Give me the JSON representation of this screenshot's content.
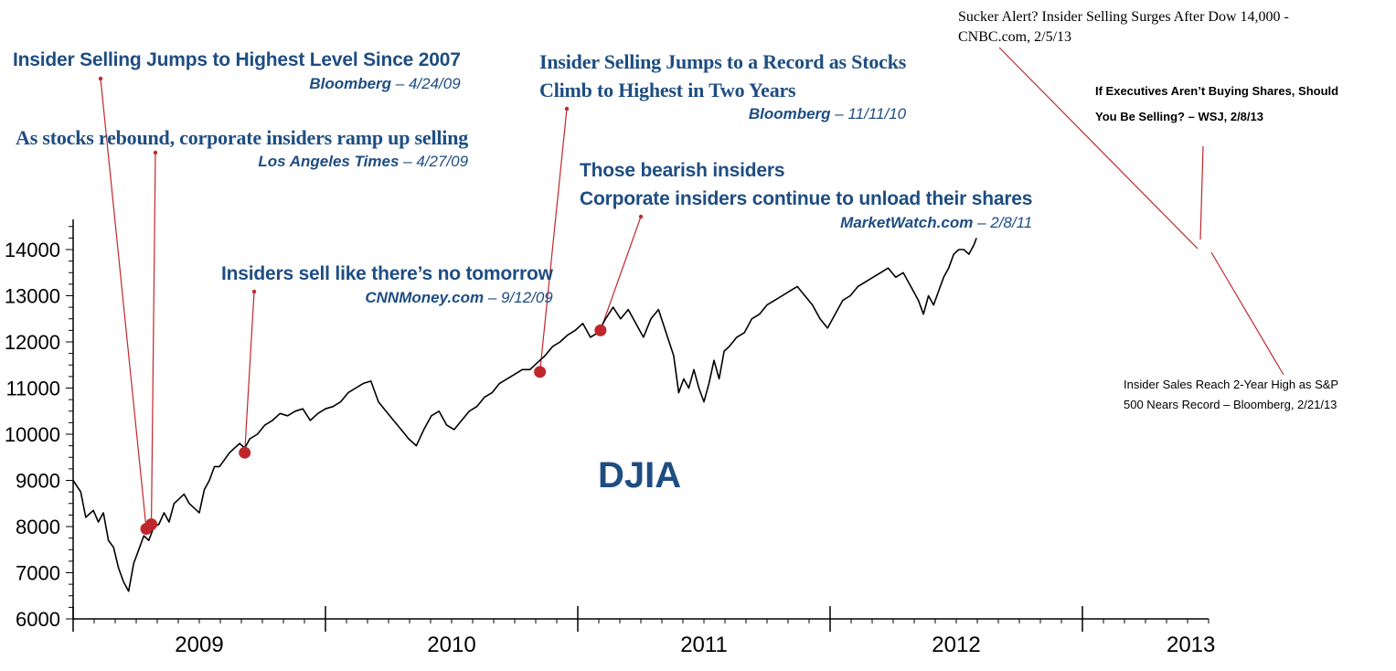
{
  "chart_data": {
    "type": "line",
    "title": "DJIA",
    "xlabel": "",
    "ylabel": "",
    "ylim": [
      6000,
      14500
    ],
    "y_ticks": [
      "6000",
      "7000",
      "8000",
      "9000",
      "10000",
      "11000",
      "12000",
      "13000",
      "14000"
    ],
    "x_year_labels": [
      "2009",
      "2010",
      "2011",
      "2012",
      "2013"
    ],
    "xlim": [
      2008.67,
      2013.17
    ],
    "series": [
      {
        "name": "DJIA",
        "color": "#000000",
        "points": [
          [
            2008.67,
            9000
          ],
          [
            2008.7,
            8750
          ],
          [
            2008.72,
            8200
          ],
          [
            2008.75,
            8350
          ],
          [
            2008.77,
            8100
          ],
          [
            2008.79,
            8300
          ],
          [
            2008.81,
            7700
          ],
          [
            2008.83,
            7550
          ],
          [
            2008.85,
            7100
          ],
          [
            2008.87,
            6800
          ],
          [
            2008.89,
            6600
          ],
          [
            2008.91,
            7200
          ],
          [
            2008.93,
            7500
          ],
          [
            2008.95,
            7800
          ],
          [
            2008.97,
            7700
          ],
          [
            2008.99,
            8000
          ],
          [
            2009.01,
            8050
          ],
          [
            2009.03,
            8300
          ],
          [
            2009.05,
            8100
          ],
          [
            2009.07,
            8500
          ],
          [
            2009.09,
            8600
          ],
          [
            2009.11,
            8700
          ],
          [
            2009.13,
            8500
          ],
          [
            2009.15,
            8400
          ],
          [
            2009.17,
            8300
          ],
          [
            2009.19,
            8800
          ],
          [
            2009.21,
            9000
          ],
          [
            2009.23,
            9300
          ],
          [
            2009.25,
            9300
          ],
          [
            2009.27,
            9450
          ],
          [
            2009.29,
            9600
          ],
          [
            2009.31,
            9700
          ],
          [
            2009.33,
            9800
          ],
          [
            2009.35,
            9700
          ],
          [
            2009.37,
            9900
          ],
          [
            2009.4,
            10000
          ],
          [
            2009.43,
            10200
          ],
          [
            2009.46,
            10300
          ],
          [
            2009.49,
            10450
          ],
          [
            2009.52,
            10400
          ],
          [
            2009.55,
            10500
          ],
          [
            2009.58,
            10550
          ],
          [
            2009.61,
            10300
          ],
          [
            2009.64,
            10450
          ],
          [
            2009.67,
            10550
          ],
          [
            2009.7,
            10600
          ],
          [
            2009.73,
            10700
          ],
          [
            2009.76,
            10900
          ],
          [
            2009.79,
            11000
          ],
          [
            2009.82,
            11100
          ],
          [
            2009.85,
            11150
          ],
          [
            2009.88,
            10700
          ],
          [
            2009.91,
            10500
          ],
          [
            2009.94,
            10300
          ],
          [
            2009.97,
            10100
          ],
          [
            2010.0,
            9900
          ],
          [
            2010.03,
            9750
          ],
          [
            2010.06,
            10100
          ],
          [
            2010.09,
            10400
          ],
          [
            2010.12,
            10500
          ],
          [
            2010.15,
            10200
          ],
          [
            2010.18,
            10100
          ],
          [
            2010.21,
            10300
          ],
          [
            2010.24,
            10500
          ],
          [
            2010.27,
            10600
          ],
          [
            2010.3,
            10800
          ],
          [
            2010.33,
            10900
          ],
          [
            2010.36,
            11100
          ],
          [
            2010.39,
            11200
          ],
          [
            2010.42,
            11300
          ],
          [
            2010.45,
            11400
          ],
          [
            2010.48,
            11400
          ],
          [
            2010.51,
            11550
          ],
          [
            2010.54,
            11700
          ],
          [
            2010.57,
            11900
          ],
          [
            2010.6,
            12000
          ],
          [
            2010.63,
            12150
          ],
          [
            2010.66,
            12250
          ],
          [
            2010.69,
            12400
          ],
          [
            2010.72,
            12100
          ],
          [
            2010.75,
            12200
          ],
          [
            2010.78,
            12500
          ],
          [
            2010.81,
            12750
          ],
          [
            2010.84,
            12500
          ],
          [
            2010.87,
            12700
          ],
          [
            2010.9,
            12400
          ],
          [
            2010.93,
            12100
          ],
          [
            2010.96,
            12500
          ],
          [
            2010.99,
            12700
          ],
          [
            2011.02,
            12200
          ],
          [
            2011.05,
            11700
          ],
          [
            2011.07,
            10900
          ],
          [
            2011.09,
            11200
          ],
          [
            2011.11,
            11000
          ],
          [
            2011.13,
            11400
          ],
          [
            2011.15,
            11000
          ],
          [
            2011.17,
            10700
          ],
          [
            2011.19,
            11100
          ],
          [
            2011.21,
            11600
          ],
          [
            2011.23,
            11200
          ],
          [
            2011.25,
            11800
          ],
          [
            2011.27,
            11900
          ],
          [
            2011.3,
            12100
          ],
          [
            2011.33,
            12200
          ],
          [
            2011.36,
            12500
          ],
          [
            2011.39,
            12600
          ],
          [
            2011.42,
            12800
          ],
          [
            2011.45,
            12900
          ],
          [
            2011.48,
            13000
          ],
          [
            2011.51,
            13100
          ],
          [
            2011.54,
            13200
          ],
          [
            2011.57,
            13000
          ],
          [
            2011.6,
            12800
          ],
          [
            2011.63,
            12500
          ],
          [
            2011.66,
            12300
          ],
          [
            2011.69,
            12600
          ],
          [
            2011.72,
            12900
          ],
          [
            2011.75,
            13000
          ],
          [
            2011.78,
            13200
          ],
          [
            2011.81,
            13300
          ],
          [
            2011.84,
            13400
          ],
          [
            2011.87,
            13500
          ],
          [
            2011.9,
            13600
          ],
          [
            2011.93,
            13400
          ],
          [
            2011.96,
            13500
          ],
          [
            2011.99,
            13200
          ],
          [
            2012.02,
            12900
          ],
          [
            2012.04,
            12600
          ],
          [
            2012.06,
            13000
          ],
          [
            2012.08,
            12800
          ],
          [
            2012.1,
            13100
          ],
          [
            2012.12,
            13400
          ],
          [
            2012.14,
            13600
          ],
          [
            2012.16,
            13900
          ],
          [
            2012.18,
            14000
          ],
          [
            2012.2,
            14000
          ],
          [
            2012.22,
            13900
          ],
          [
            2012.24,
            14100
          ],
          [
            2012.25,
            14250
          ]
        ]
      }
    ],
    "highlight_points": [
      {
        "label": "4/24/09",
        "x": 2008.96,
        "y": 7950
      },
      {
        "label": "4/27/09",
        "x": 2008.98,
        "y": 8050
      },
      {
        "label": "9/12/09",
        "x": 2009.35,
        "y": 9600
      },
      {
        "label": "11/11/10",
        "x": 2010.52,
        "y": 11350
      },
      {
        "label": "2/8/11",
        "x": 2010.76,
        "y": 12250
      }
    ]
  },
  "annotations": {
    "a1": {
      "headline": "Insider Selling Jumps to Highest Level Since 2007",
      "source": "Bloomberg",
      "date": "– 4/24/09"
    },
    "a2": {
      "headline": "As stocks rebound, corporate insiders ramp up selling",
      "source": "Los Angeles Times",
      "date": "– 4/27/09"
    },
    "a3": {
      "headline": "Insiders sell like there’s no tomorrow",
      "source": "CNNMoney.com",
      "date": "– 9/12/09"
    },
    "a4": {
      "headline_1": "Insider Selling Jumps to a Record as Stocks",
      "headline_2": "Climb to Highest in Two Years",
      "source": "Bloomberg",
      "date": "– 11/11/10"
    },
    "a5": {
      "headline_1": "Those bearish insiders",
      "headline_2": "Corporate insiders continue to unload their shares",
      "source": "MarketWatch.com",
      "date": "– 2/8/11"
    },
    "a6": {
      "line_1": "Sucker Alert? Insider Selling Surges After Dow 14,000 -",
      "line_2": "CNBC.com, 2/5/13"
    },
    "a7": {
      "line_1": "If Executives Aren’t Buying Shares, Should",
      "line_2": "You Be Selling? – WSJ, 2/8/13"
    },
    "a8": {
      "line_1": "Insider Sales Reach 2-Year High as S&P",
      "line_2": "500 Nears Record – Bloomberg, 2/21/13"
    }
  },
  "colors": {
    "accent": "#1e4d82",
    "marker": "#c0272d",
    "leader": "#c0272d",
    "line": "#000000"
  }
}
